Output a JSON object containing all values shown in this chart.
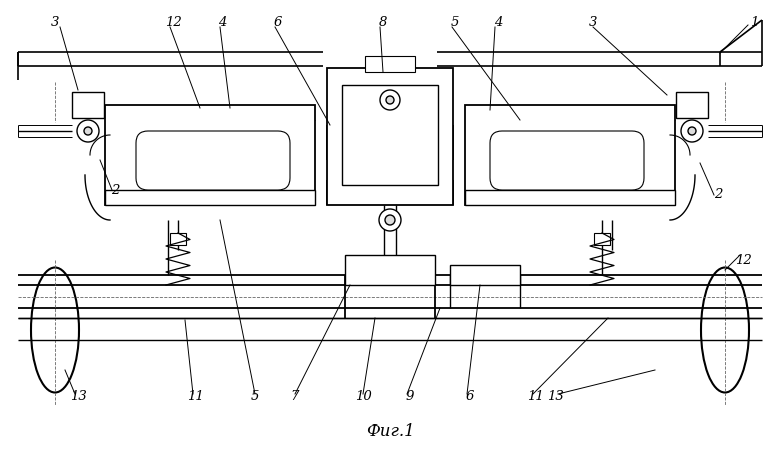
{
  "fig_width": 7.8,
  "fig_height": 4.5,
  "dpi": 100,
  "bg_color": "#ffffff",
  "lc": "#000000",
  "lw": 1.0,
  "tlw": 0.6,
  "title": "Фиг.1"
}
